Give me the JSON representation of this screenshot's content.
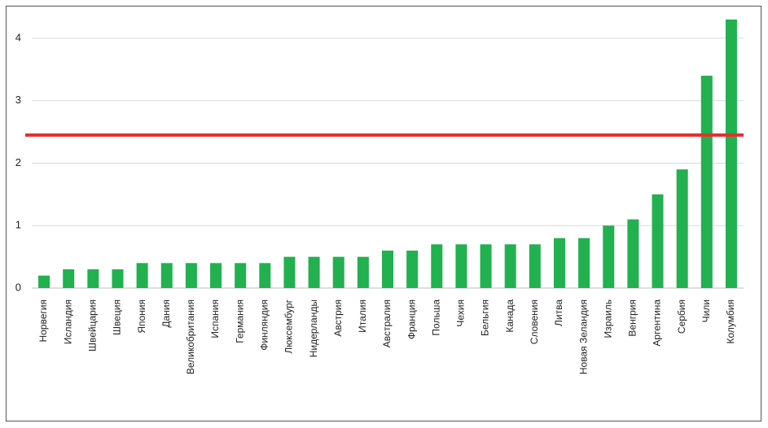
{
  "chart_data": {
    "type": "bar",
    "categories": [
      "Норвегия",
      "Исландия",
      "Швейцария",
      "Швеция",
      "Япония",
      "Дания",
      "Великобритания",
      "Испания",
      "Германия",
      "Финляндия",
      "Люксембург",
      "Нидерланды",
      "Австрия",
      "Италия",
      "Австралия",
      "Франция",
      "Польша",
      "Чехия",
      "Бельгия",
      "Канада",
      "Словения",
      "Литва",
      "Новая Зеландия",
      "Израиль",
      "Венгрия",
      "Аргентина",
      "Сербия",
      "Чили",
      "Колумбия"
    ],
    "values": [
      0.2,
      0.3,
      0.3,
      0.3,
      0.4,
      0.4,
      0.4,
      0.4,
      0.4,
      0.4,
      0.5,
      0.5,
      0.5,
      0.5,
      0.6,
      0.6,
      0.7,
      0.7,
      0.7,
      0.7,
      0.7,
      0.8,
      0.8,
      1.0,
      1.1,
      1.5,
      1.9,
      3.4,
      4.3
    ],
    "color": "#21b14f",
    "ylim": [
      0,
      4.4
    ],
    "yticks": [
      0,
      1,
      2,
      3,
      4
    ],
    "grid": true,
    "reference_line": {
      "value": 2.45,
      "color": "#e8302a"
    }
  }
}
